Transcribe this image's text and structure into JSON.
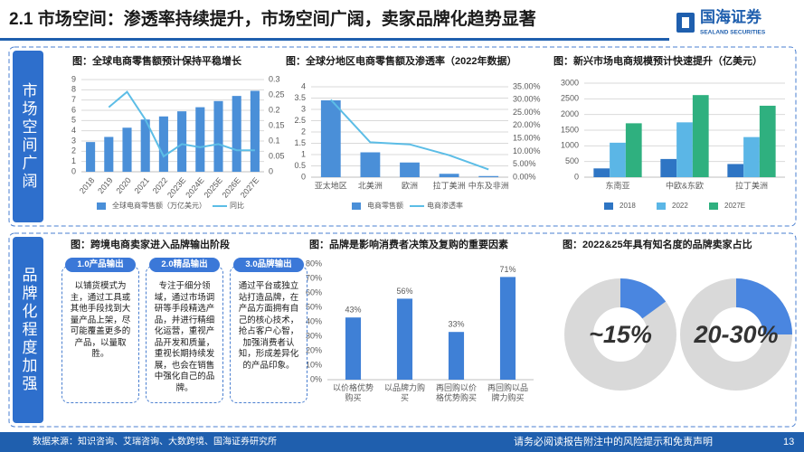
{
  "header": {
    "title": "2.1 市场空间：渗透率持续提升，市场空间广阔，卖家品牌化趋势显著",
    "logo_cn": "国海证券",
    "logo_en": "SEALAND SECURITIES"
  },
  "sections": [
    "市场空间广阔",
    "品牌化程度加强"
  ],
  "stages_title": "图：跨境电商卖家进入品牌输出阶段",
  "stages": [
    {
      "title": "1.0产品输出",
      "text": "以铺货模式为主，通过工具或其他手段找到大量产品上架，尽可能覆盖更多的产品，以量取胜。"
    },
    {
      "title": "2.0精品输出",
      "text": "专注于细分领域，通过市场调研等手段精选产品，并进行精细化运营，重视产品开发和质量，重视长期持续发展，也会在销售中强化自己的品牌。"
    },
    {
      "title": "3.0品牌输出",
      "text": "通过平台或独立站打造品牌，在产品方面拥有自己的核心技术，抢占客户心智，加强消费者认知，形成差异化的产品印象。"
    }
  ],
  "footer": {
    "source": "数据来源：知识咨询、艾瑞咨询、大数跨境、国海证券研究所",
    "disclaimer": "请务必阅读报告附注中的风险提示和免责声明",
    "page": 13
  },
  "chart_data": [
    {
      "type": "bar",
      "title": "图：全球电商零售额预计保持平稳增长",
      "categories": [
        "2018",
        "2019",
        "2020",
        "2021",
        "2022",
        "2023E",
        "2024E",
        "2025E",
        "2026E",
        "2027E"
      ],
      "series": [
        {
          "name": "全球电商零售额（万亿美元）",
          "color": "#4a8fd8",
          "values": [
            2.9,
            3.4,
            4.3,
            5.1,
            5.4,
            5.9,
            6.3,
            6.9,
            7.4,
            7.9
          ]
        },
        {
          "name": "同比",
          "color": "#5cbde6",
          "type": "line",
          "axis": "y2",
          "values": [
            null,
            0.21,
            0.26,
            0.17,
            0.05,
            0.09,
            0.08,
            0.09,
            0.07,
            0.07
          ]
        }
      ],
      "ylim": [
        0,
        9
      ],
      "yticks": [
        0,
        1,
        2,
        3,
        4,
        5,
        6,
        7,
        8,
        9
      ],
      "y2lim": [
        0,
        0.3
      ],
      "y2ticks": [
        0,
        0.05,
        0.1,
        0.15,
        0.2,
        0.25,
        0.3
      ],
      "grid": true
    },
    {
      "type": "bar",
      "title": "图：全球分地区电商零售额及渗透率（2022年数据）",
      "categories": [
        "亚太地区",
        "北美洲",
        "欧洲",
        "拉丁美洲",
        "中东及非洲"
      ],
      "series": [
        {
          "name": "电商零售额",
          "color": "#4a8fd8",
          "values": [
            3.4,
            1.1,
            0.65,
            0.15,
            0.05
          ]
        },
        {
          "name": "电商渗透率",
          "color": "#5cbde6",
          "type": "line",
          "axis": "y2",
          "values": [
            30,
            13.5,
            12.7,
            8.5,
            3
          ]
        }
      ],
      "ylim": [
        0,
        4
      ],
      "yticks": [
        0,
        0.5,
        1,
        1.5,
        2,
        2.5,
        3,
        3.5,
        4
      ],
      "y2lim": [
        0,
        35
      ],
      "y2ticks": [
        {
          "value": 0,
          "label": "0.00%"
        },
        {
          "value": 5,
          "label": "5.00%"
        },
        {
          "value": 10,
          "label": "10.00%"
        },
        {
          "value": 15,
          "label": "15.00%"
        },
        {
          "value": 20,
          "label": "20.00%"
        },
        {
          "value": 25,
          "label": "25.00%"
        },
        {
          "value": 30,
          "label": "30.00%"
        },
        {
          "value": 35,
          "label": "35.00%"
        }
      ],
      "grid": true
    },
    {
      "type": "bar",
      "title": "图：新兴市场电商规模预计快速提升（亿美元）",
      "categories": [
        "东南亚",
        "中欧&东欧",
        "拉丁美洲"
      ],
      "series": [
        {
          "name": "2018",
          "color": "#2e75c4",
          "values": [
            280,
            580,
            420
          ]
        },
        {
          "name": "2022",
          "color": "#5bb6e6",
          "values": [
            1100,
            1750,
            1280
          ]
        },
        {
          "name": "2027E",
          "color": "#2fb07f",
          "values": [
            1720,
            2620,
            2280
          ]
        }
      ],
      "ylim": [
        0,
        3000
      ],
      "yticks": [
        0,
        500,
        1000,
        1500,
        2000,
        2500,
        3000
      ],
      "grid": true
    },
    {
      "type": "bar",
      "title": "图：品牌是影响消费者决策及复购的重要因素",
      "categories": [
        "以价格优势购买",
        "以品牌力购买",
        "再回购以价格优势购买",
        "再回购以品牌力购买"
      ],
      "values": [
        43,
        56,
        33,
        71
      ],
      "value_labels": [
        "43%",
        "56%",
        "33%",
        "71%"
      ],
      "color": "#3f80d6",
      "ylim": [
        0,
        80
      ],
      "yticks": [
        {
          "value": 0,
          "label": "0%"
        },
        {
          "value": 10,
          "label": "10%"
        },
        {
          "value": 20,
          "label": "20%"
        },
        {
          "value": 30,
          "label": "30%"
        },
        {
          "value": 40,
          "label": "40%"
        },
        {
          "value": 50,
          "label": "50%"
        },
        {
          "value": 60,
          "label": "60%"
        },
        {
          "value": 70,
          "label": "70%"
        },
        {
          "value": 80,
          "label": "80%"
        }
      ],
      "grid": false
    },
    {
      "type": "donut",
      "title": "图：2022&25年具有知名度的品牌卖家占比",
      "values": [
        15,
        25
      ],
      "value_labels": [
        "~15%",
        "20-30%"
      ],
      "color": "#4a86e0",
      "rest_color": "#d9d9d9"
    }
  ]
}
